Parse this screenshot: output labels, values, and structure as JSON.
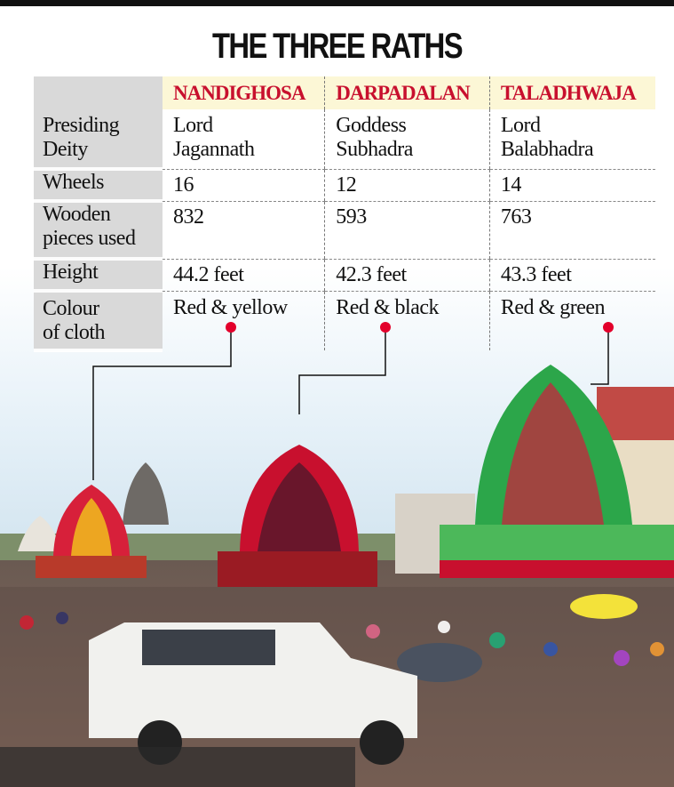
{
  "title": "THE THREE RATHS",
  "columns": [
    "NANDIGHOSA",
    "DARPADALAN",
    "TALADHWAJA"
  ],
  "rows": [
    {
      "label": [
        "Presiding",
        "Deity"
      ],
      "values": [
        [
          "Lord",
          "Jagannath"
        ],
        [
          "Goddess",
          "Subhadra"
        ],
        [
          "Lord",
          "Balabhadra"
        ]
      ]
    },
    {
      "label": [
        "Wheels"
      ],
      "values": [
        [
          "16"
        ],
        [
          "12"
        ],
        [
          "14"
        ]
      ]
    },
    {
      "label": [
        "Wooden",
        "pieces used"
      ],
      "values": [
        [
          "832"
        ],
        [
          "593"
        ],
        [
          "763"
        ]
      ]
    },
    {
      "label": [
        "Height"
      ],
      "values": [
        [
          "44.2 feet"
        ],
        [
          "42.3 feet"
        ],
        [
          "43.3 feet"
        ]
      ]
    },
    {
      "label": [
        "Colour",
        "of cloth"
      ],
      "values": [
        [
          "Red & yellow"
        ],
        [
          "Red & black"
        ],
        [
          "Red & green"
        ]
      ]
    }
  ],
  "colors": {
    "accent": "#c8102e",
    "header_bg": "#fcf7d6",
    "label_bg": "#d9d9d9"
  }
}
